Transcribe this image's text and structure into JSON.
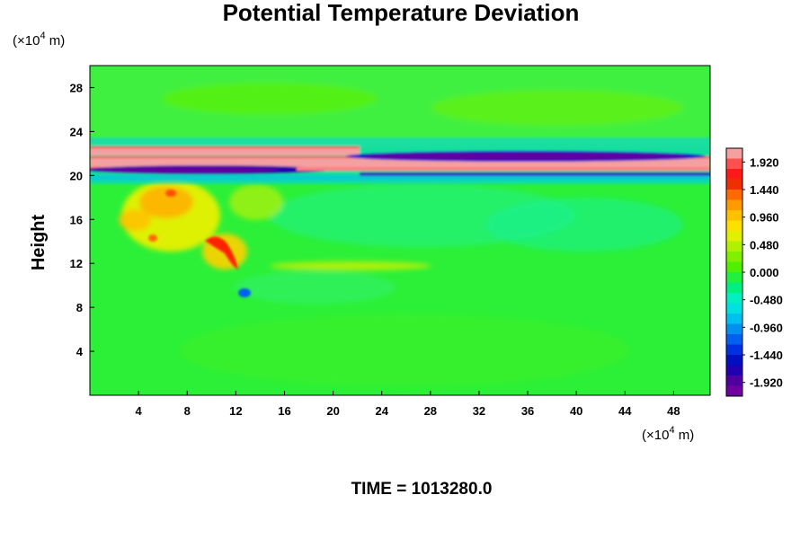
{
  "chart_data": {
    "type": "heatmap",
    "title": "Potential Temperature Deviation",
    "xlabel": "",
    "x_unit": "(×10⁴ m)",
    "ylabel": "Height",
    "y_unit": "(×10⁴ m)",
    "x_ticks": [
      "4",
      "8",
      "12",
      "16",
      "20",
      "24",
      "28",
      "32",
      "36",
      "40",
      "44",
      "48"
    ],
    "y_ticks": [
      "4",
      "8",
      "12",
      "16",
      "20",
      "24",
      "28"
    ],
    "xlim": [
      0,
      51
    ],
    "ylim": [
      0,
      30
    ],
    "colorbar": {
      "range": [
        -2.16,
        2.16
      ],
      "labels": [
        "1.920",
        "1.440",
        "0.960",
        "0.480",
        "0.000",
        "-0.480",
        "-0.960",
        "-1.440",
        "-1.920"
      ],
      "colors_top_to_bottom": [
        "#f4a0a0",
        "#ff5050",
        "#ff1a1a",
        "#ee3000",
        "#ff6a00",
        "#ff9a00",
        "#ffc000",
        "#ffe000",
        "#e0f000",
        "#b0f000",
        "#80f000",
        "#50f000",
        "#20f040",
        "#00f080",
        "#00f0c0",
        "#00e0e0",
        "#00c0f0",
        "#0090f0",
        "#0060f0",
        "#0030e0",
        "#0010c0",
        "#2000b0",
        "#5000a0",
        "#7000a0"
      ]
    },
    "features": [
      {
        "description": "positive band",
        "x_range": [
          0,
          51
        ],
        "y_center": 21.3,
        "value": 1.9
      },
      {
        "description": "negative band",
        "x_range": [
          22,
          51
        ],
        "y_center": 21.6,
        "value": -1.9
      },
      {
        "description": "negative band",
        "x_range": [
          0,
          20
        ],
        "y_center": 20.4,
        "value": -1.9
      }
    ]
  },
  "footer": {
    "time_label": "TIME = 1013280.0"
  }
}
